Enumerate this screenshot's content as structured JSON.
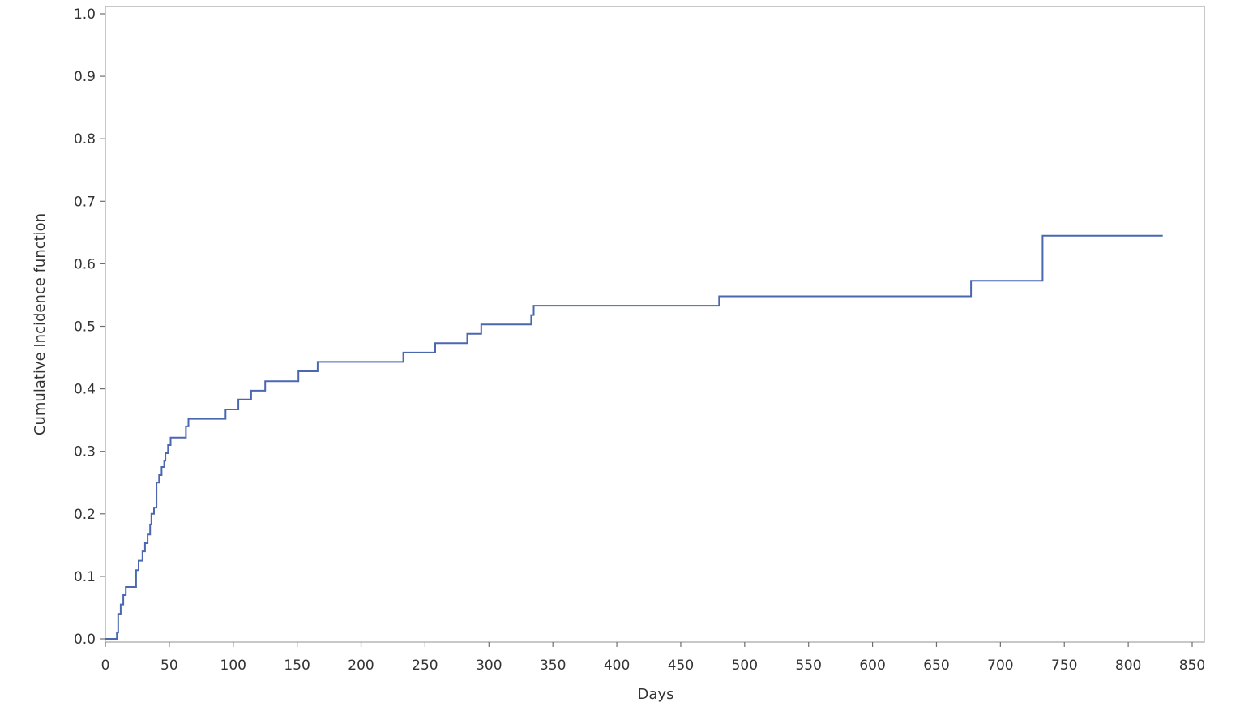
{
  "chart_data": {
    "type": "line",
    "step": true,
    "title": "",
    "xlabel": "Days",
    "ylabel": "Cumulative Incidence function",
    "xlim": [
      0,
      850
    ],
    "ylim": [
      0,
      1.0
    ],
    "x_ticks": [
      0,
      50,
      100,
      150,
      200,
      250,
      300,
      350,
      400,
      450,
      500,
      550,
      600,
      650,
      700,
      750,
      800,
      850
    ],
    "y_ticks": [
      "0.0",
      "0.1",
      "0.2",
      "0.3",
      "0.4",
      "0.5",
      "0.6",
      "0.7",
      "0.8",
      "0.9",
      "1.0"
    ],
    "grid": false,
    "line_color": "#4a67b0",
    "series": [
      {
        "x": [
          0,
          9,
          10,
          12,
          14,
          16,
          18,
          24,
          26,
          29,
          31,
          33,
          35,
          36,
          38,
          40,
          42,
          44,
          46,
          47,
          49,
          51,
          53,
          63,
          65,
          94,
          104,
          114,
          125,
          151,
          166,
          233,
          258,
          283,
          294,
          333,
          335,
          480,
          677,
          733,
          827
        ],
        "y": [
          0.0,
          0.01,
          0.04,
          0.055,
          0.07,
          0.083,
          0.083,
          0.11,
          0.125,
          0.14,
          0.153,
          0.167,
          0.183,
          0.2,
          0.21,
          0.25,
          0.262,
          0.275,
          0.285,
          0.297,
          0.31,
          0.322,
          0.322,
          0.34,
          0.352,
          0.367,
          0.383,
          0.397,
          0.412,
          0.428,
          0.443,
          0.458,
          0.473,
          0.488,
          0.503,
          0.518,
          0.533,
          0.548,
          0.573,
          0.645,
          0.645
        ]
      }
    ]
  }
}
